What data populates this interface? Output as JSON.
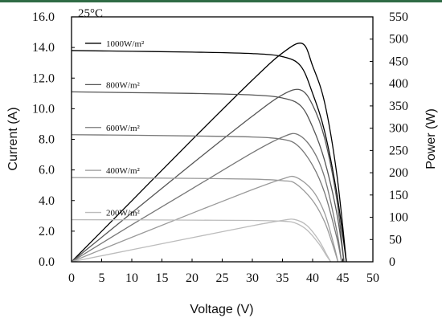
{
  "chart_data": {
    "type": "line",
    "temperature_label": "25°C",
    "xlabel": "Voltage (V)",
    "ylabel_left": "Current (A)",
    "ylabel_right": "Power (W)",
    "xlim": [
      0,
      50
    ],
    "ylim_left": [
      0,
      16
    ],
    "ylim_right": [
      0,
      550
    ],
    "x_ticks": [
      "0",
      "5",
      "10",
      "15",
      "20",
      "25",
      "30",
      "35",
      "40",
      "45",
      "50"
    ],
    "y_left_ticks": [
      "0.0",
      "2.0",
      "4.0",
      "6.0",
      "8.0",
      "10.0",
      "12.0",
      "14.0",
      "16.0"
    ],
    "y_right_ticks": [
      "0",
      "50",
      "100",
      "150",
      "200",
      "250",
      "300",
      "350",
      "400",
      "450",
      "500",
      "550"
    ],
    "grid": false,
    "series": [
      {
        "name": "1000W/m²",
        "color": "#000000",
        "isc": 13.8,
        "voc": 45.6,
        "vmp": 38.3,
        "pmax": 490,
        "iv_points": [
          [
            0,
            13.8
          ],
          [
            10,
            13.75
          ],
          [
            20,
            13.7
          ],
          [
            30,
            13.6
          ],
          [
            35,
            13.4
          ],
          [
            38,
            12.8
          ],
          [
            40,
            11.0
          ],
          [
            42,
            8.5
          ],
          [
            44,
            4.5
          ],
          [
            45.6,
            0
          ]
        ],
        "pv_points": [
          [
            0,
            0
          ],
          [
            10,
            137
          ],
          [
            20,
            274
          ],
          [
            30,
            408
          ],
          [
            35,
            469
          ],
          [
            38.3,
            490
          ],
          [
            40,
            440
          ],
          [
            42,
            357
          ],
          [
            44,
            198
          ],
          [
            45.6,
            0
          ]
        ]
      },
      {
        "name": "800W/m²",
        "color": "#555555",
        "isc": 11.1,
        "voc": 45.2,
        "vmp": 38.0,
        "pmax": 386,
        "iv_points": [
          [
            0,
            11.1
          ],
          [
            10,
            11.05
          ],
          [
            20,
            11.0
          ],
          [
            30,
            10.9
          ],
          [
            35,
            10.7
          ],
          [
            38,
            10.2
          ],
          [
            40,
            8.8
          ],
          [
            42,
            6.6
          ],
          [
            44,
            3.2
          ],
          [
            45.2,
            0
          ]
        ],
        "pv_points": [
          [
            0,
            0
          ],
          [
            10,
            110
          ],
          [
            20,
            220
          ],
          [
            30,
            327
          ],
          [
            35,
            375
          ],
          [
            38,
            386
          ],
          [
            40,
            352
          ],
          [
            42,
            277
          ],
          [
            44,
            141
          ],
          [
            45.2,
            0
          ]
        ]
      },
      {
        "name": "600W/m²",
        "color": "#777777",
        "isc": 8.3,
        "voc": 44.8,
        "vmp": 37.5,
        "pmax": 286,
        "iv_points": [
          [
            0,
            8.3
          ],
          [
            10,
            8.27
          ],
          [
            20,
            8.22
          ],
          [
            30,
            8.15
          ],
          [
            35,
            8.0
          ],
          [
            37.5,
            7.6
          ],
          [
            40,
            6.3
          ],
          [
            42,
            4.5
          ],
          [
            44,
            1.6
          ],
          [
            44.8,
            0
          ]
        ],
        "pv_points": [
          [
            0,
            0
          ],
          [
            10,
            83
          ],
          [
            20,
            164
          ],
          [
            30,
            245
          ],
          [
            35,
            280
          ],
          [
            37.5,
            286
          ],
          [
            40,
            252
          ],
          [
            42,
            189
          ],
          [
            44,
            70
          ],
          [
            44.8,
            0
          ]
        ]
      },
      {
        "name": "400W/m²",
        "color": "#9a9a9a",
        "isc": 5.5,
        "voc": 44.2,
        "vmp": 37.2,
        "pmax": 190,
        "iv_points": [
          [
            0,
            5.5
          ],
          [
            10,
            5.48
          ],
          [
            20,
            5.45
          ],
          [
            30,
            5.4
          ],
          [
            35,
            5.3
          ],
          [
            37.2,
            5.1
          ],
          [
            40,
            4.0
          ],
          [
            42,
            2.6
          ],
          [
            43.5,
            0.9
          ],
          [
            44.2,
            0
          ]
        ],
        "pv_points": [
          [
            0,
            0
          ],
          [
            10,
            55
          ],
          [
            20,
            109
          ],
          [
            30,
            162
          ],
          [
            35,
            186
          ],
          [
            37.2,
            190
          ],
          [
            40,
            160
          ],
          [
            42,
            109
          ],
          [
            43.5,
            39
          ],
          [
            44.2,
            0
          ]
        ]
      },
      {
        "name": "200W/m²",
        "color": "#bcbcbc",
        "isc": 2.75,
        "voc": 43.0,
        "vmp": 37.0,
        "pmax": 95,
        "iv_points": [
          [
            0,
            2.75
          ],
          [
            10,
            2.74
          ],
          [
            20,
            2.72
          ],
          [
            30,
            2.7
          ],
          [
            35,
            2.65
          ],
          [
            37,
            2.55
          ],
          [
            39,
            2.1
          ],
          [
            41,
            1.2
          ],
          [
            42.3,
            0.4
          ],
          [
            43,
            0
          ]
        ],
        "pv_points": [
          [
            0,
            0
          ],
          [
            10,
            27
          ],
          [
            20,
            54
          ],
          [
            30,
            81
          ],
          [
            35,
            93
          ],
          [
            37,
            95
          ],
          [
            39,
            82
          ],
          [
            41,
            49
          ],
          [
            42.3,
            17
          ],
          [
            43,
            0
          ]
        ]
      }
    ]
  }
}
